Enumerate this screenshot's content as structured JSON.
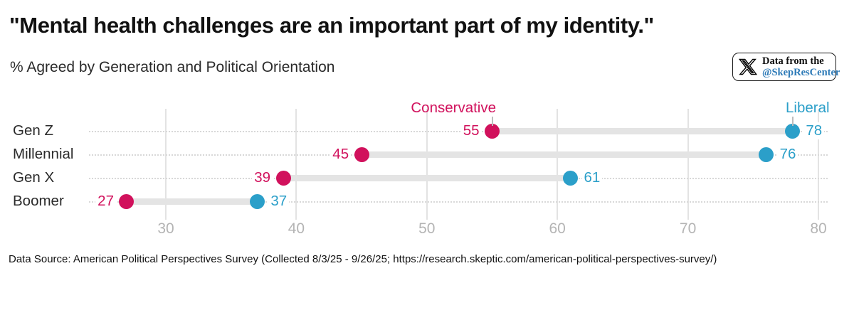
{
  "title": "\"Mental health challenges are an important part of my identity.\"",
  "subtitle": "% Agreed by Generation and Political Orientation",
  "badge": {
    "icon": "x-logo",
    "line1": "Data from the",
    "handle": "@SkepResCenter",
    "handle_color": "#2e7bb8"
  },
  "footer": "Data Source: American Political Perspectives Survey (Collected 8/3/25 - 9/26/25; https://research.skeptic.com/american-political-perspectives-survey/)",
  "chart_data": {
    "type": "dumbbell",
    "categories": [
      "Gen Z",
      "Millennial",
      "Gen X",
      "Boomer"
    ],
    "series": [
      {
        "name": "Conservative",
        "color": "#d1115c",
        "values": [
          55,
          45,
          39,
          27
        ]
      },
      {
        "name": "Liberal",
        "color": "#2b9fc9",
        "values": [
          78,
          76,
          61,
          37
        ]
      }
    ],
    "x_ticks": [
      30,
      40,
      50,
      60,
      70,
      80
    ],
    "xlim": [
      24,
      81
    ],
    "value_labels": "shown at both dot ends",
    "grid": "vertical gridlines at ticks + dotted horizontal row lines",
    "connector_color": "#e4e4e4",
    "axis_label_color": "#b4b4b4",
    "legend_position": "inline labels above top row"
  }
}
